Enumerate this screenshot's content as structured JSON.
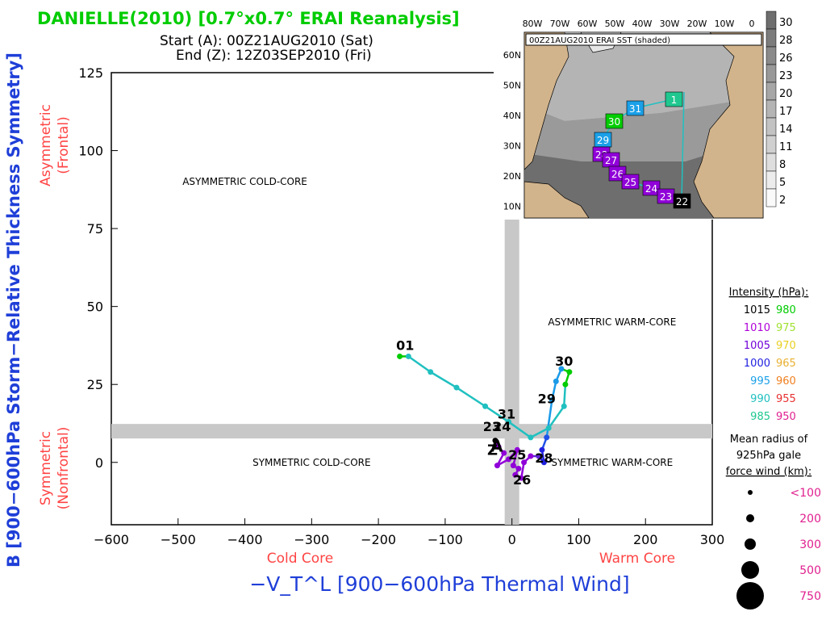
{
  "header": {
    "title": "DANIELLE(2010) [0.7°x0.7° ERAI Reanalysis]",
    "start_label": "Start (A): 00Z21AUG2010 (Sat)",
    "end_label": "End (Z): 12Z03SEP2010 (Fri)"
  },
  "colors": {
    "title": "#00cc00",
    "ylabel": "#1f3fd8",
    "xlabel": "#1f3fd8",
    "axis_note": "#ff4444",
    "quadrant_bar": "#c8c8c8",
    "radius_label": "#e0208f"
  },
  "chart_data": {
    "type": "line",
    "xlim": [
      -600,
      300
    ],
    "ylim": [
      -20,
      125
    ],
    "xticks": [
      -600,
      -500,
      -400,
      -300,
      -200,
      -100,
      0,
      100,
      200,
      300
    ],
    "yticks": [
      0,
      25,
      50,
      75,
      100,
      125
    ],
    "xlabel": "−V_T^L [900−600hPa Thermal Wind]",
    "ylabel": "B [900−600hPa Storm−Relative Thickness Symmetry]",
    "x_notes": {
      "left": "Cold Core",
      "right": "Warm Core"
    },
    "y_notes": {
      "upper": [
        "Asymmetric",
        "(Frontal)"
      ],
      "lower": [
        "Symmetric",
        "(Nonfrontal)"
      ]
    },
    "quadrants": {
      "upper_left": "ASYMMETRIC COLD-CORE",
      "upper_right": "ASYMMETRIC WARM-CORE",
      "lower_left": "SYMMETRIC COLD-CORE",
      "lower_right": "SYMMETRIC WARM-CORE"
    },
    "series": [
      {
        "name": "Danielle track",
        "points": [
          {
            "x": -25,
            "y": 7,
            "c": "#000000"
          },
          {
            "x": -20,
            "y": 5,
            "c": "#9000d8"
          },
          {
            "x": -12,
            "y": 3,
            "c": "#9000d8"
          },
          {
            "x": -22,
            "y": -1,
            "c": "#9000d8"
          },
          {
            "x": -5,
            "y": 1,
            "c": "#9000d8"
          },
          {
            "x": 8,
            "y": 4,
            "c": "#9000d8"
          },
          {
            "x": 2,
            "y": -1,
            "c": "#9000d8"
          },
          {
            "x": 10,
            "y": -2,
            "c": "#9000d8"
          },
          {
            "x": 5,
            "y": -4,
            "c": "#9000d8"
          },
          {
            "x": 14,
            "y": -5,
            "c": "#9000d8"
          },
          {
            "x": 18,
            "y": 0,
            "c": "#9000d8"
          },
          {
            "x": 28,
            "y": 2,
            "c": "#9000d8"
          },
          {
            "x": 40,
            "y": 2,
            "c": "#6020d8"
          },
          {
            "x": 48,
            "y": 0,
            "c": "#2020e0"
          },
          {
            "x": 45,
            "y": 4,
            "c": "#2020e0"
          },
          {
            "x": 52,
            "y": 8,
            "c": "#2050e8"
          },
          {
            "x": 60,
            "y": 20,
            "c": "#1a9ae8"
          },
          {
            "x": 66,
            "y": 26,
            "c": "#1a9ae8"
          },
          {
            "x": 74,
            "y": 30,
            "c": "#1a9ae8"
          },
          {
            "x": 86,
            "y": 29,
            "c": "#00cc00"
          },
          {
            "x": 80,
            "y": 25,
            "c": "#00cc00"
          },
          {
            "x": 78,
            "y": 18,
            "c": "#20c0c0"
          },
          {
            "x": 55,
            "y": 11,
            "c": "#20c0c0"
          },
          {
            "x": 28,
            "y": 8,
            "c": "#20c0c0"
          },
          {
            "x": -5,
            "y": 13,
            "c": "#20c0c0"
          },
          {
            "x": -40,
            "y": 18,
            "c": "#20c0c0"
          },
          {
            "x": -83,
            "y": 24,
            "c": "#20c0c0"
          },
          {
            "x": -122,
            "y": 29,
            "c": "#20c0c0"
          },
          {
            "x": -155,
            "y": 34,
            "c": "#20c0c0"
          },
          {
            "x": -168,
            "y": 34,
            "c": "#00cc00"
          }
        ],
        "labels": [
          {
            "text": "01",
            "x": -160,
            "y": 36
          },
          {
            "text": "31",
            "x": -8,
            "y": 14
          },
          {
            "text": "29",
            "x": 52,
            "y": 19
          },
          {
            "text": "30",
            "x": 78,
            "y": 31
          },
          {
            "text": "28",
            "x": 48,
            "y": 0
          },
          {
            "text": "26",
            "x": 15,
            "y": -7
          },
          {
            "text": "23",
            "x": -30,
            "y": 10
          },
          {
            "text": "24",
            "x": -15,
            "y": 10
          },
          {
            "text": "25",
            "x": 8,
            "y": 1
          }
        ]
      }
    ]
  },
  "inset": {
    "title": "00Z21AUG2010 ERAI SST (shaded)",
    "lon_labels": [
      "80W",
      "70W",
      "60W",
      "50W",
      "40W",
      "30W",
      "20W",
      "10W",
      "0"
    ],
    "lat_labels": [
      "60N",
      "50N",
      "40N",
      "30N",
      "20N",
      "10N"
    ],
    "colorbar": [
      "30",
      "28",
      "26",
      "23",
      "20",
      "17",
      "14",
      "11",
      "8",
      "5",
      "2"
    ],
    "day_boxes": [
      {
        "text": "1",
        "c": "#20c890"
      },
      {
        "text": "31",
        "c": "#1aa0e8"
      },
      {
        "text": "30",
        "c": "#00cc00"
      },
      {
        "text": "29",
        "c": "#1aa0e8"
      },
      {
        "text": "28",
        "c": "#9000d8"
      },
      {
        "text": "27",
        "c": "#9000d8"
      },
      {
        "text": "26",
        "c": "#9000d8"
      },
      {
        "text": "25",
        "c": "#9000d8"
      },
      {
        "text": "24",
        "c": "#9000d8"
      },
      {
        "text": "23",
        "c": "#9000d8"
      },
      {
        "text": "22",
        "c": "#000000"
      }
    ]
  },
  "legend": {
    "intensity_title": "Intensity (hPa):",
    "intensity": [
      {
        "a": "1015",
        "ac": "#000000",
        "b": "980",
        "bc": "#00cc00"
      },
      {
        "a": "1010",
        "ac": "#b000d8",
        "b": "975",
        "bc": "#a0e030"
      },
      {
        "a": "1005",
        "ac": "#7000d8",
        "b": "970",
        "bc": "#e8d020"
      },
      {
        "a": "1000",
        "ac": "#2020e0",
        "b": "965",
        "bc": "#e8b030"
      },
      {
        "a": "995",
        "ac": "#1aa0e8",
        "b": "960",
        "bc": "#f08020"
      },
      {
        "a": "990",
        "ac": "#20c0c0",
        "b": "955",
        "bc": "#e83030"
      },
      {
        "a": "985",
        "ac": "#20c890",
        "b": "950",
        "bc": "#e0208f"
      }
    ],
    "radius_title": [
      "Mean radius of",
      "925hPa gale",
      "force wind (km):"
    ],
    "radius": [
      {
        "label": "<100",
        "r": 3
      },
      {
        "label": "200",
        "r": 5
      },
      {
        "label": "300",
        "r": 7
      },
      {
        "label": "500",
        "r": 11
      },
      {
        "label": "750",
        "r": 17
      }
    ]
  }
}
